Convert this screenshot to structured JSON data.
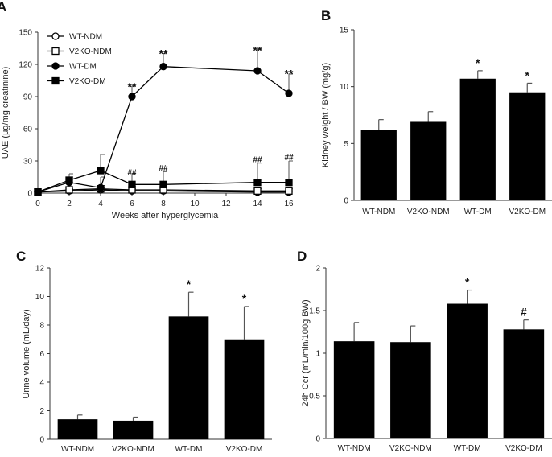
{
  "chart_data": [
    {
      "panel": "A",
      "type": "line",
      "ylabel": "UAE (μg/mg creatinine)",
      "xlabel": "Weeks after hyperglycemia",
      "x": [
        0,
        2,
        4,
        6,
        8,
        14,
        16
      ],
      "xticks": [
        0,
        2,
        4,
        6,
        8,
        10,
        12,
        14,
        16
      ],
      "yticks": [
        0,
        30,
        60,
        90,
        120,
        150
      ],
      "ylim": [
        0,
        150
      ],
      "xlim": [
        0,
        16
      ],
      "legend_placement": "top-left",
      "series": [
        {
          "name": "WT-NDM",
          "marker": "circle-open",
          "values": [
            1,
            2,
            3,
            2,
            2,
            1,
            1
          ],
          "err": [
            0,
            2,
            2,
            2,
            2,
            1,
            1
          ]
        },
        {
          "name": "V2KO-NDM",
          "marker": "square-open",
          "values": [
            1,
            3,
            4,
            3,
            3,
            2,
            2
          ],
          "err": [
            0,
            3,
            3,
            3,
            3,
            2,
            2
          ]
        },
        {
          "name": "WT-DM",
          "marker": "circle-filled",
          "values": [
            1,
            10,
            5,
            90,
            118,
            114,
            93
          ],
          "err": [
            0,
            5,
            10,
            10,
            12,
            20,
            18
          ]
        },
        {
          "name": "V2KO-DM",
          "marker": "square-filled",
          "values": [
            1,
            12,
            21,
            8,
            8,
            10,
            10
          ],
          "err": [
            0,
            6,
            15,
            10,
            12,
            18,
            20
          ]
        }
      ],
      "annotations": [
        {
          "x": 6,
          "text": "**",
          "above": 100
        },
        {
          "x": 8,
          "text": "**",
          "above": 131
        },
        {
          "x": 14,
          "text": "**",
          "above": 134
        },
        {
          "x": 16,
          "text": "**",
          "above": 112
        },
        {
          "x": 6,
          "text": "##",
          "above": 17
        },
        {
          "x": 8,
          "text": "##",
          "above": 21
        },
        {
          "x": 14,
          "text": "##",
          "above": 29
        },
        {
          "x": 16,
          "text": "##",
          "above": 31
        }
      ]
    },
    {
      "panel": "B",
      "type": "bar",
      "ylabel": "Kidney weight / BW (mg/g)",
      "categories": [
        "WT-NDM",
        "V2KO-NDM",
        "WT-DM",
        "V2KO-DM"
      ],
      "values": [
        6.2,
        6.9,
        10.7,
        9.5
      ],
      "err": [
        0.9,
        0.9,
        0.7,
        0.8
      ],
      "yticks": [
        0,
        5,
        10,
        15
      ],
      "ylim": [
        0,
        15
      ],
      "marks": [
        "",
        "",
        "*",
        "*"
      ]
    },
    {
      "panel": "C",
      "type": "bar",
      "ylabel": "Urine volume (mL/day)",
      "categories": [
        "WT-NDM",
        "V2KO-NDM",
        "WT-DM",
        "V2KO-DM"
      ],
      "values": [
        1.4,
        1.3,
        8.6,
        7.0
      ],
      "err": [
        0.3,
        0.25,
        1.7,
        2.3
      ],
      "yticks": [
        0,
        2,
        4,
        6,
        8,
        10,
        12
      ],
      "ylim": [
        0,
        12
      ],
      "marks": [
        "",
        "",
        "*",
        "*"
      ]
    },
    {
      "panel": "D",
      "type": "bar",
      "ylabel": "24h Ccr (mL/min/100g BW)",
      "categories": [
        "WT-NDM",
        "V2KO-NDM",
        "WT-DM",
        "V2KO-DM"
      ],
      "values": [
        1.14,
        1.13,
        1.58,
        1.28
      ],
      "err": [
        0.22,
        0.19,
        0.16,
        0.11
      ],
      "yticks": [
        0,
        0.5,
        1,
        1.5,
        2
      ],
      "ytick_labels": [
        "0",
        "0.5",
        "1",
        "1.5",
        "2"
      ],
      "ylim": [
        0,
        2
      ],
      "marks": [
        "",
        "",
        "*",
        "#"
      ]
    }
  ]
}
